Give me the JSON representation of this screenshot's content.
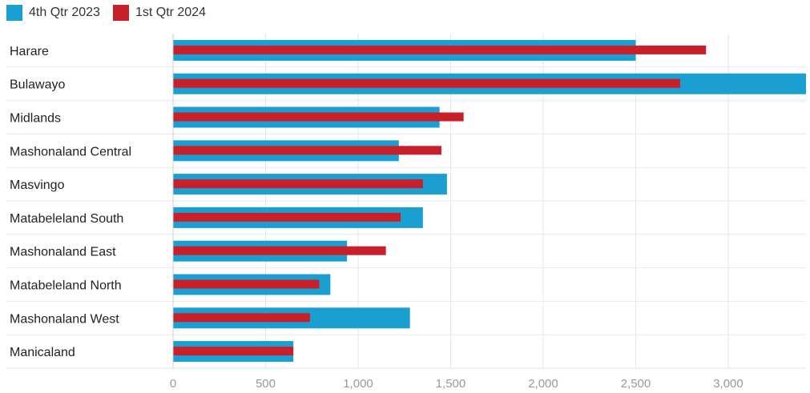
{
  "chart_data": {
    "type": "bar",
    "orientation": "horizontal",
    "categories": [
      "Harare",
      "Bulawayo",
      "Midlands",
      "Mashonaland Central",
      "Masvingo",
      "Matabeleland South",
      "Mashonaland East",
      "Matabeleland North",
      "Mashonaland West",
      "Manicaland"
    ],
    "series": [
      {
        "name": "4th Qtr 2023",
        "color": "#1a9fd0",
        "values": [
          2500,
          3420,
          1440,
          1220,
          1480,
          1350,
          940,
          850,
          1280,
          650
        ]
      },
      {
        "name": "1st Qtr 2024",
        "color": "#c8202a",
        "values": [
          2880,
          2740,
          1570,
          1450,
          1350,
          1230,
          1150,
          790,
          740,
          650
        ]
      }
    ],
    "xlim": [
      0,
      3420
    ],
    "x_ticks": [
      0,
      500,
      1000,
      1500,
      2000,
      2500,
      3000
    ],
    "x_tick_labels": [
      "0",
      "500",
      "1,000",
      "1,500",
      "2,000",
      "2,500",
      "3,000"
    ],
    "title": "",
    "xlabel": "",
    "ylabel": "",
    "legend_position": "top-left",
    "grid": true
  }
}
